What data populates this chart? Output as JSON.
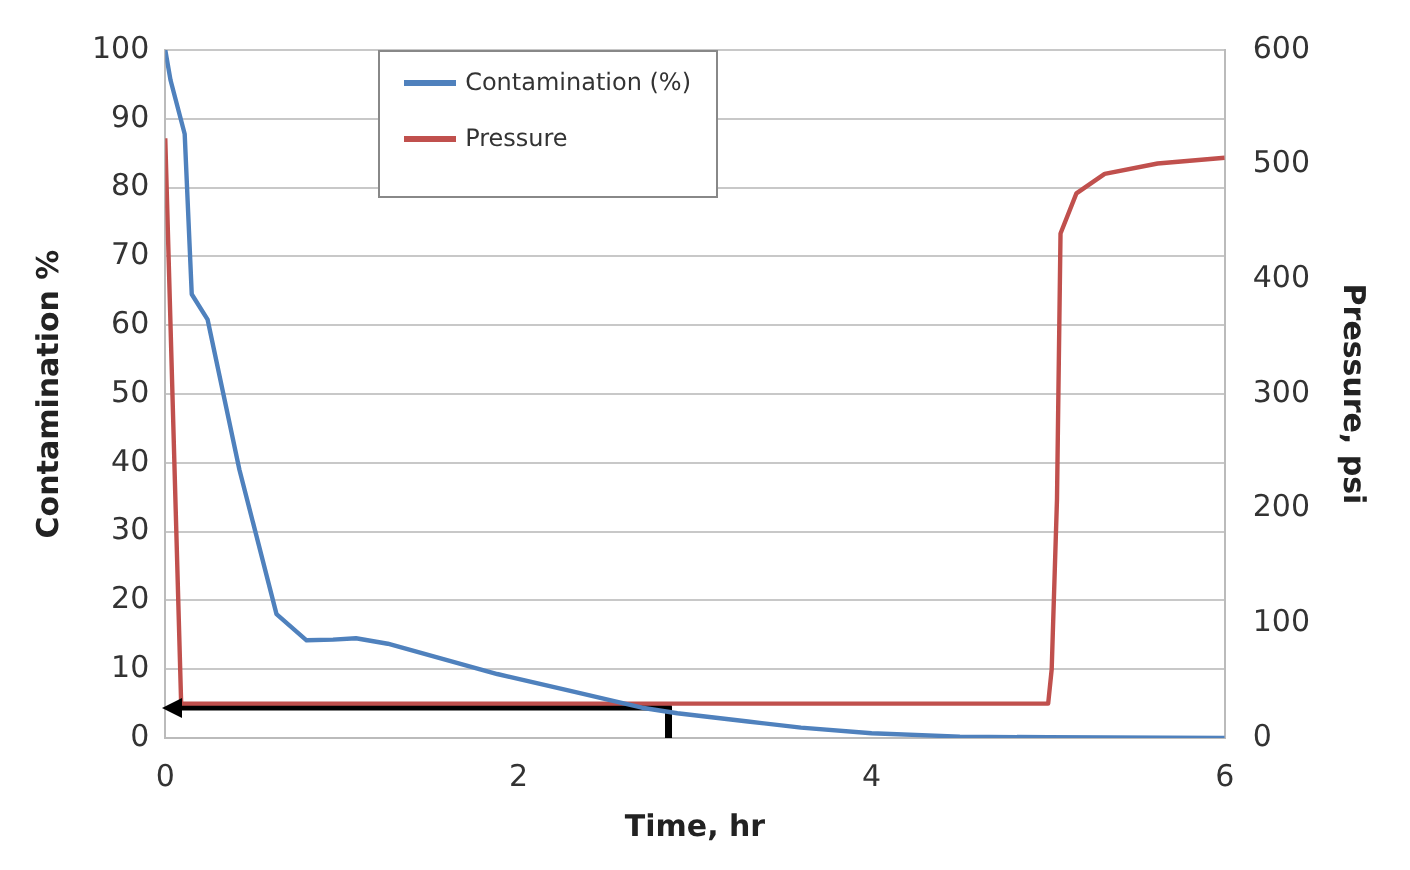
{
  "chart_data": {
    "type": "line",
    "xlabel": "Time, hr",
    "ylabel": "Contamination %",
    "y2label": "Pressure, psi",
    "xlim": [
      0,
      6
    ],
    "xticks": [
      0,
      2,
      4,
      6
    ],
    "ylim": [
      0,
      100
    ],
    "yticks": [
      0,
      10,
      20,
      30,
      40,
      50,
      60,
      70,
      80,
      90,
      100
    ],
    "y2lim": [
      0,
      600
    ],
    "y2ticks": [
      0,
      100,
      200,
      300,
      400,
      500,
      600
    ],
    "grid": "y",
    "legend": "top left",
    "marker": "none",
    "line_style": "solid",
    "series": [
      {
        "name": "Contamination (%)",
        "color": "#4f81bd",
        "x": [
          0,
          0.03,
          0.11,
          0.15,
          0.24,
          0.42,
          0.63,
          0.8,
          0.95,
          1.08,
          1.26,
          1.88,
          2.3,
          2.7,
          2.9,
          3.3,
          3.6,
          4,
          4.5,
          5,
          6
        ],
        "values": [
          100,
          95.6,
          87.8,
          64.5,
          60.8,
          39,
          18,
          14.2,
          14.3,
          14.5,
          13.7,
          9.3,
          6.8,
          4.4,
          3.6,
          2.4,
          1.5,
          0.7,
          0.2,
          0.1,
          0
        ]
      },
      {
        "name": "Pressure",
        "color": "#c0504d",
        "axis": "y2",
        "x": [
          0,
          0.09,
          2,
          4,
          5,
          5.02,
          5.05,
          5.07,
          5.16,
          5.32,
          5.62,
          6
        ],
        "values": [
          523,
          30,
          30,
          30,
          30,
          60,
          208,
          440,
          475,
          492,
          501,
          506
        ]
      },
      {
        "color": "#000000",
        "x": [
          2.85,
          2.85,
          0.08
        ],
        "values": [
          0,
          4.5,
          4.5
        ]
      }
    ]
  }
}
